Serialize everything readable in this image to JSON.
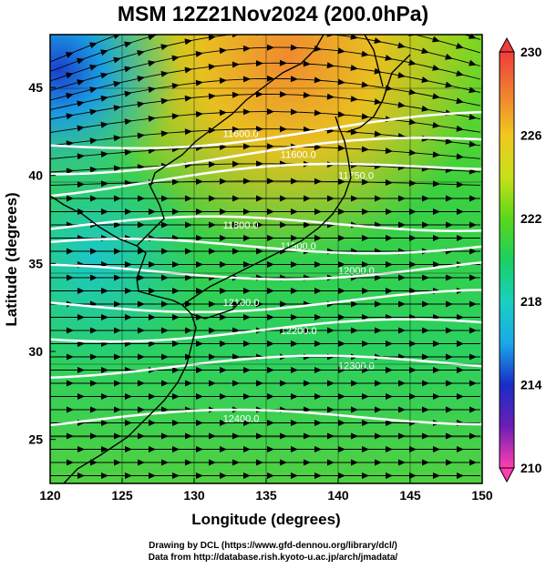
{
  "title": "MSM 12Z21Nov2024 (200.0hPa)",
  "axes": {
    "xlabel": "Longitude (degrees)",
    "ylabel": "Latitude  (degrees)",
    "xlim": [
      120,
      150
    ],
    "ylim": [
      22.5,
      48
    ],
    "xticks": [
      "120",
      "125",
      "130",
      "135",
      "140",
      "145",
      "150"
    ],
    "yticks": [
      "25",
      "30",
      "35",
      "40",
      "45"
    ]
  },
  "colorbar": {
    "range": [
      210,
      230
    ],
    "labels": [
      "230",
      "226",
      "222",
      "218",
      "214",
      "210"
    ],
    "colors": [
      "#ff3fb0",
      "#6a1fb5",
      "#1a2cc8",
      "#1aa8e8",
      "#1ad0c0",
      "#1ad060",
      "#5ad81a",
      "#c8e01a",
      "#f0c820",
      "#f08030",
      "#f03c3c"
    ]
  },
  "contours": {
    "color": "#ffffff",
    "levels": [
      {
        "label": "11600.0",
        "lat": 42.4
      },
      {
        "label": "11600.0",
        "lat": 41.2
      },
      {
        "label": "11750.0",
        "lat": 40.0
      },
      {
        "label": "11800.0",
        "lat": 37.2
      },
      {
        "label": "11900.0",
        "lat": 36.0
      },
      {
        "label": "12000.0",
        "lat": 34.6
      },
      {
        "label": "12100.0",
        "lat": 32.8
      },
      {
        "label": "12200.0",
        "lat": 31.2
      },
      {
        "label": "12300.0",
        "lat": 29.2
      },
      {
        "label": "12400.0",
        "lat": 26.2
      }
    ]
  },
  "credit": {
    "line1": "Drawing by DCL (https://www.gfd-dennou.org/library/dcl/)",
    "line2": "Data from http://database.rish.kyoto-u.ac.jp/arch/jmadata/"
  }
}
